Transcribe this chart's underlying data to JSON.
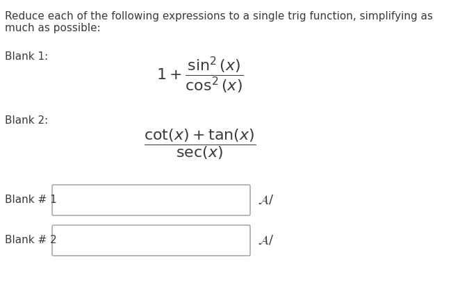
{
  "background_color": "#ffffff",
  "title_text": "Reduce each of the following expressions to a single trig function, simplifying as\nmuch as possible:",
  "blank1_label": "Blank 1:",
  "blank2_label": "Blank 2:",
  "blank_num1_label": "Blank # 1",
  "blank_num2_label": "Blank # 2",
  "formula1": "1 + \\frac{\\sin^{2}(x)}{\\cos^{2}(x)}",
  "formula2": "\\frac{\\cot(x) + \\tan(x)}{\\sec(x)}",
  "text_color": "#3a3a3a",
  "box_color": "#cccccc",
  "font_size_title": 11,
  "font_size_label": 11,
  "font_size_formula": 16,
  "font_size_blank_label": 11
}
